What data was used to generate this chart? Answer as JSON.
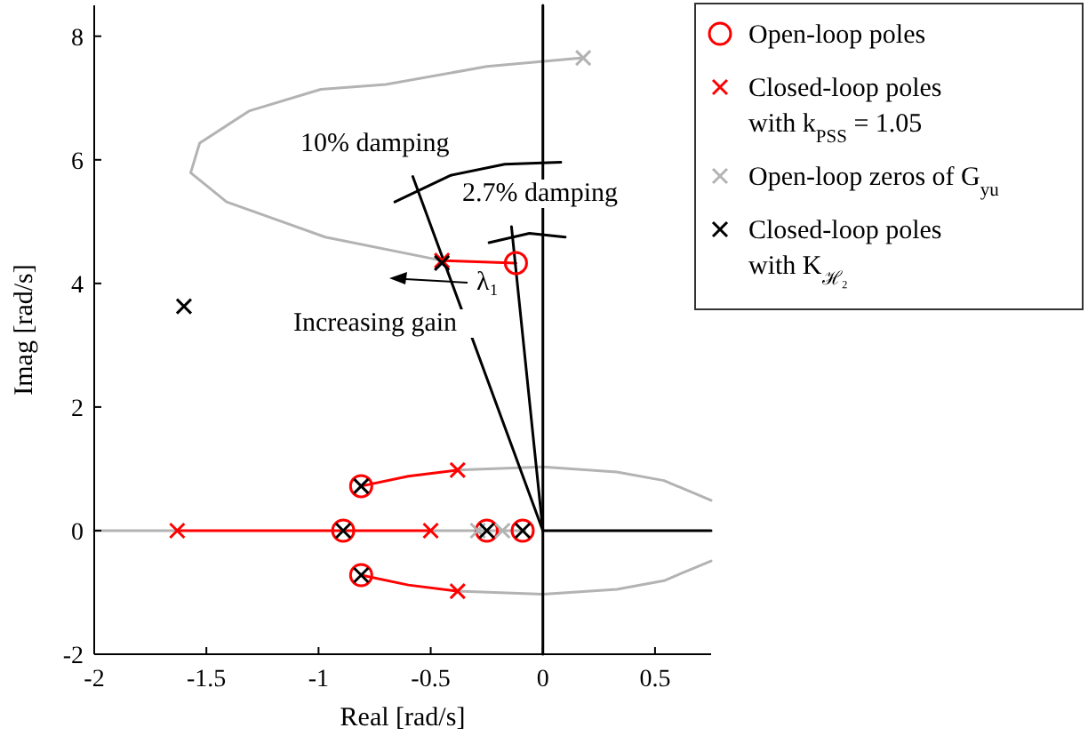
{
  "chart_data": {
    "type": "scatter",
    "xlabel": "Real [rad/s]",
    "ylabel": "Imag [rad/s]",
    "xlim": [
      -2,
      0.75
    ],
    "ylim": [
      -2,
      8.5
    ],
    "xticks": [
      -2,
      -1.5,
      -1,
      -0.5,
      0,
      0.5
    ],
    "yticks": [
      -2,
      0,
      2,
      4,
      6,
      8
    ],
    "grid": false,
    "legend": "top right",
    "series": [
      {
        "type": "line",
        "color": "#000000",
        "x": [
          0,
          0.75
        ],
        "values": [
          0,
          0
        ]
      },
      {
        "type": "line",
        "color": "#b3b3b3",
        "x": [
          -0.45,
          -0.97,
          -1.41,
          -1.57,
          -1.53,
          -1.31,
          -0.99,
          -0.7,
          -0.25,
          0.18
        ],
        "values": [
          4.37,
          4.75,
          5.32,
          5.79,
          6.27,
          6.79,
          7.14,
          7.22,
          7.51,
          7.65
        ]
      },
      {
        "type": "line",
        "color": "#b3b3b3",
        "x": [
          -0.38,
          0,
          0.33,
          0.54,
          0.75
        ],
        "values": [
          0.98,
          1.03,
          0.95,
          0.81,
          0.49
        ]
      },
      {
        "type": "line",
        "color": "#b3b3b3",
        "x": [
          -0.38,
          0,
          0.33,
          0.54,
          0.75
        ],
        "values": [
          -0.98,
          -1.03,
          -0.95,
          -0.81,
          -0.49
        ]
      },
      {
        "type": "line",
        "color": "#b3b3b3",
        "x": [
          -2,
          -1.63
        ],
        "values": [
          0,
          0
        ]
      },
      {
        "type": "line",
        "color": "#b3b3b3",
        "x": [
          -0.5,
          -0.08
        ],
        "values": [
          0,
          0
        ]
      },
      {
        "type": "line",
        "color": "#ff0000",
        "x": [
          -0.12,
          -0.45
        ],
        "values": [
          4.33,
          4.37
        ]
      },
      {
        "type": "line",
        "color": "#ff0000",
        "x": [
          -0.81,
          -0.6,
          -0.38
        ],
        "values": [
          0.72,
          0.88,
          0.98
        ]
      },
      {
        "type": "line",
        "color": "#ff0000",
        "x": [
          -0.81,
          -0.6,
          -0.38
        ],
        "values": [
          -0.72,
          -0.88,
          -0.98
        ]
      },
      {
        "type": "line",
        "color": "#ff0000",
        "x": [
          -1.63,
          -0.5
        ],
        "values": [
          0,
          0
        ]
      },
      {
        "type": "line",
        "color": "#000000",
        "x": [
          0,
          0
        ],
        "values": [
          -2,
          8.5
        ]
      },
      {
        "type": "line",
        "color": "#000000",
        "x": [
          0,
          -0.58
        ],
        "values": [
          0,
          5.73
        ]
      },
      {
        "type": "line",
        "color": "#000000",
        "x": [
          0,
          -0.14
        ],
        "values": [
          0,
          4.92
        ]
      },
      {
        "type": "line",
        "color": "#000000",
        "x": [
          -0.66,
          -0.41,
          -0.17,
          0.08
        ],
        "values": [
          5.32,
          5.75,
          5.93,
          5.96
        ]
      },
      {
        "type": "line",
        "color": "#000000",
        "x": [
          -0.24,
          -0.06,
          0.1
        ],
        "values": [
          4.66,
          4.81,
          4.75
        ]
      },
      {
        "name": "Open-loop poles",
        "marker": "circle",
        "color": "#ff0000",
        "x": [
          -0.12,
          -0.81,
          -0.81,
          -0.89,
          -0.25,
          -0.09
        ],
        "values": [
          4.33,
          0.72,
          -0.72,
          0,
          0,
          0
        ]
      },
      {
        "name": "Closed-loop poles with k$_{PSS}$ = 1.05",
        "marker": "cross",
        "color": "#ff0000",
        "x": [
          -0.45,
          -0.38,
          -0.38,
          -1.63,
          -0.5
        ],
        "values": [
          4.37,
          0.98,
          -0.98,
          0,
          0
        ]
      },
      {
        "name": "Open-loop zeros of G$_{yu}$",
        "marker": "cross",
        "color": "#b3b3b3",
        "x": [
          0.18,
          -0.29,
          -0.18
        ],
        "values": [
          7.65,
          0,
          0
        ]
      },
      {
        "name": "Closed-loop poles with K$_{ℋ₂}$",
        "marker": "cross",
        "color": "#000000",
        "x": [
          -0.45,
          -0.81,
          -0.81,
          -0.89,
          -0.25,
          -0.09,
          -1.6
        ],
        "values": [
          4.33,
          0.72,
          -0.72,
          0,
          0,
          0,
          3.63
        ]
      }
    ],
    "annotations": [
      "10% damping",
      "2.7% damping",
      "λ₁",
      "Increasing gain"
    ]
  }
}
